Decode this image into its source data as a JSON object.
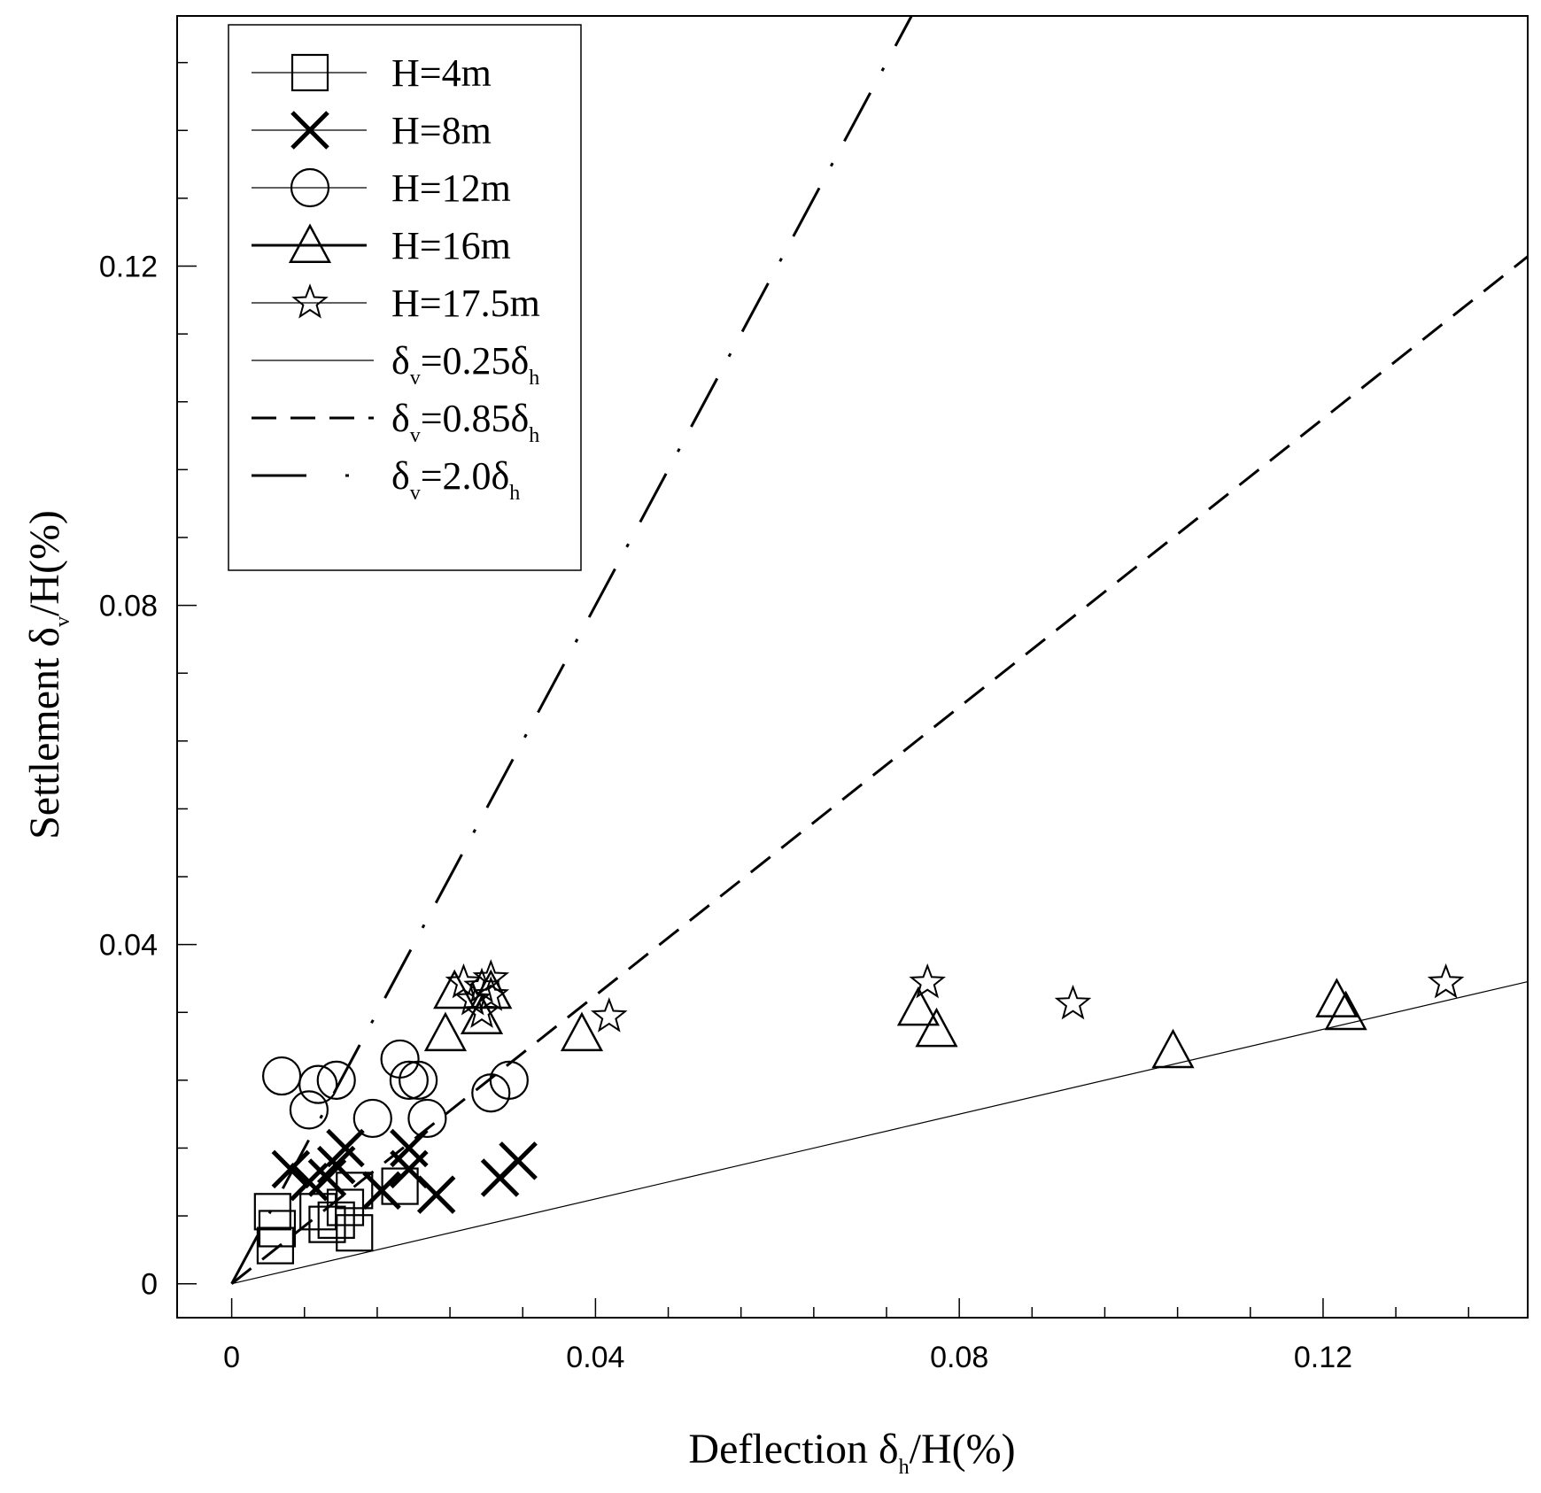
{
  "chart_data": {
    "type": "scatter",
    "xlabel": "Deflection δh/H(%)",
    "ylabel": "Settlement δv/H(%)",
    "xlim": [
      -0.006,
      0.1425
    ],
    "ylim": [
      -0.004,
      0.1495
    ],
    "x_ticks": [
      0,
      0.04,
      0.08,
      0.12
    ],
    "y_ticks": [
      0,
      0.04,
      0.08,
      0.12
    ],
    "x_tick_labels": [
      "0",
      "0.04",
      "0.08",
      "0.12"
    ],
    "y_tick_labels": [
      "0",
      "0.04",
      "0.08",
      "0.12"
    ],
    "x_minor_step": 0.008,
    "y_minor_step": 0.008,
    "legend_position": "top-left",
    "series": [
      {
        "name": "H=4m",
        "marker": "square",
        "points": [
          [
            0.0045,
            0.0085
          ],
          [
            0.005,
            0.0065
          ],
          [
            0.0048,
            0.0045
          ],
          [
            0.0095,
            0.0085
          ],
          [
            0.0105,
            0.007
          ],
          [
            0.0115,
            0.0075
          ],
          [
            0.0135,
            0.006
          ],
          [
            0.0125,
            0.009
          ],
          [
            0.0135,
            0.011
          ],
          [
            0.0185,
            0.0115
          ]
        ]
      },
      {
        "name": "H=8m",
        "marker": "x",
        "points": [
          [
            0.0065,
            0.0135
          ],
          [
            0.0085,
            0.012
          ],
          [
            0.0105,
            0.0125
          ],
          [
            0.0115,
            0.014
          ],
          [
            0.0125,
            0.016
          ],
          [
            0.0165,
            0.011
          ],
          [
            0.0195,
            0.0135
          ],
          [
            0.0195,
            0.016
          ],
          [
            0.0225,
            0.0105
          ],
          [
            0.0295,
            0.0125
          ],
          [
            0.0315,
            0.0145
          ]
        ]
      },
      {
        "name": "H=12m",
        "marker": "circle",
        "points": [
          [
            0.0055,
            0.0245
          ],
          [
            0.0085,
            0.0205
          ],
          [
            0.0095,
            0.0235
          ],
          [
            0.0115,
            0.024
          ],
          [
            0.0155,
            0.0195
          ],
          [
            0.0185,
            0.0265
          ],
          [
            0.0195,
            0.024
          ],
          [
            0.0205,
            0.024
          ],
          [
            0.0215,
            0.0195
          ],
          [
            0.0285,
            0.0225
          ],
          [
            0.0305,
            0.024
          ]
        ]
      },
      {
        "name": "H=16m",
        "marker": "triangle",
        "points": [
          [
            0.0235,
            0.0295
          ],
          [
            0.0245,
            0.0345
          ],
          [
            0.0275,
            0.0315
          ],
          [
            0.0285,
            0.0345
          ],
          [
            0.0385,
            0.0295
          ],
          [
            0.0755,
            0.0325
          ],
          [
            0.0775,
            0.03
          ],
          [
            0.1035,
            0.0275
          ],
          [
            0.1215,
            0.0335
          ],
          [
            0.1225,
            0.032
          ]
        ]
      },
      {
        "name": "H=17.5m",
        "marker": "star",
        "points": [
          [
            0.0255,
            0.0355
          ],
          [
            0.0265,
            0.0335
          ],
          [
            0.0275,
            0.035
          ],
          [
            0.0285,
            0.036
          ],
          [
            0.0275,
            0.032
          ],
          [
            0.0285,
            0.034
          ],
          [
            0.0415,
            0.0315
          ],
          [
            0.0765,
            0.0355
          ],
          [
            0.0925,
            0.033
          ],
          [
            0.1335,
            0.0355
          ]
        ]
      }
    ],
    "reference_lines": [
      {
        "name": "δv=0.25δh",
        "slope": 0.25,
        "style": "solid"
      },
      {
        "name": "δv=0.85δh",
        "slope": 0.85,
        "style": "dashed"
      },
      {
        "name": "δv=2.0δh",
        "slope": 2.0,
        "style": "dash-dot"
      }
    ],
    "legend": [
      {
        "label": "H=4m",
        "type": "marker",
        "marker": "square"
      },
      {
        "label": "H=8m",
        "type": "marker",
        "marker": "x"
      },
      {
        "label": "H=12m",
        "type": "marker",
        "marker": "circle"
      },
      {
        "label": "H=16m",
        "type": "marker",
        "marker": "triangle"
      },
      {
        "label": "H=17.5m",
        "type": "marker",
        "marker": "star"
      },
      {
        "label": "δv=0.25δh",
        "type": "line",
        "style": "solid"
      },
      {
        "label": "δv=0.85δh",
        "type": "line",
        "style": "dashed"
      },
      {
        "label": "δv=2.0δh",
        "type": "line",
        "style": "dash-dot"
      }
    ]
  }
}
